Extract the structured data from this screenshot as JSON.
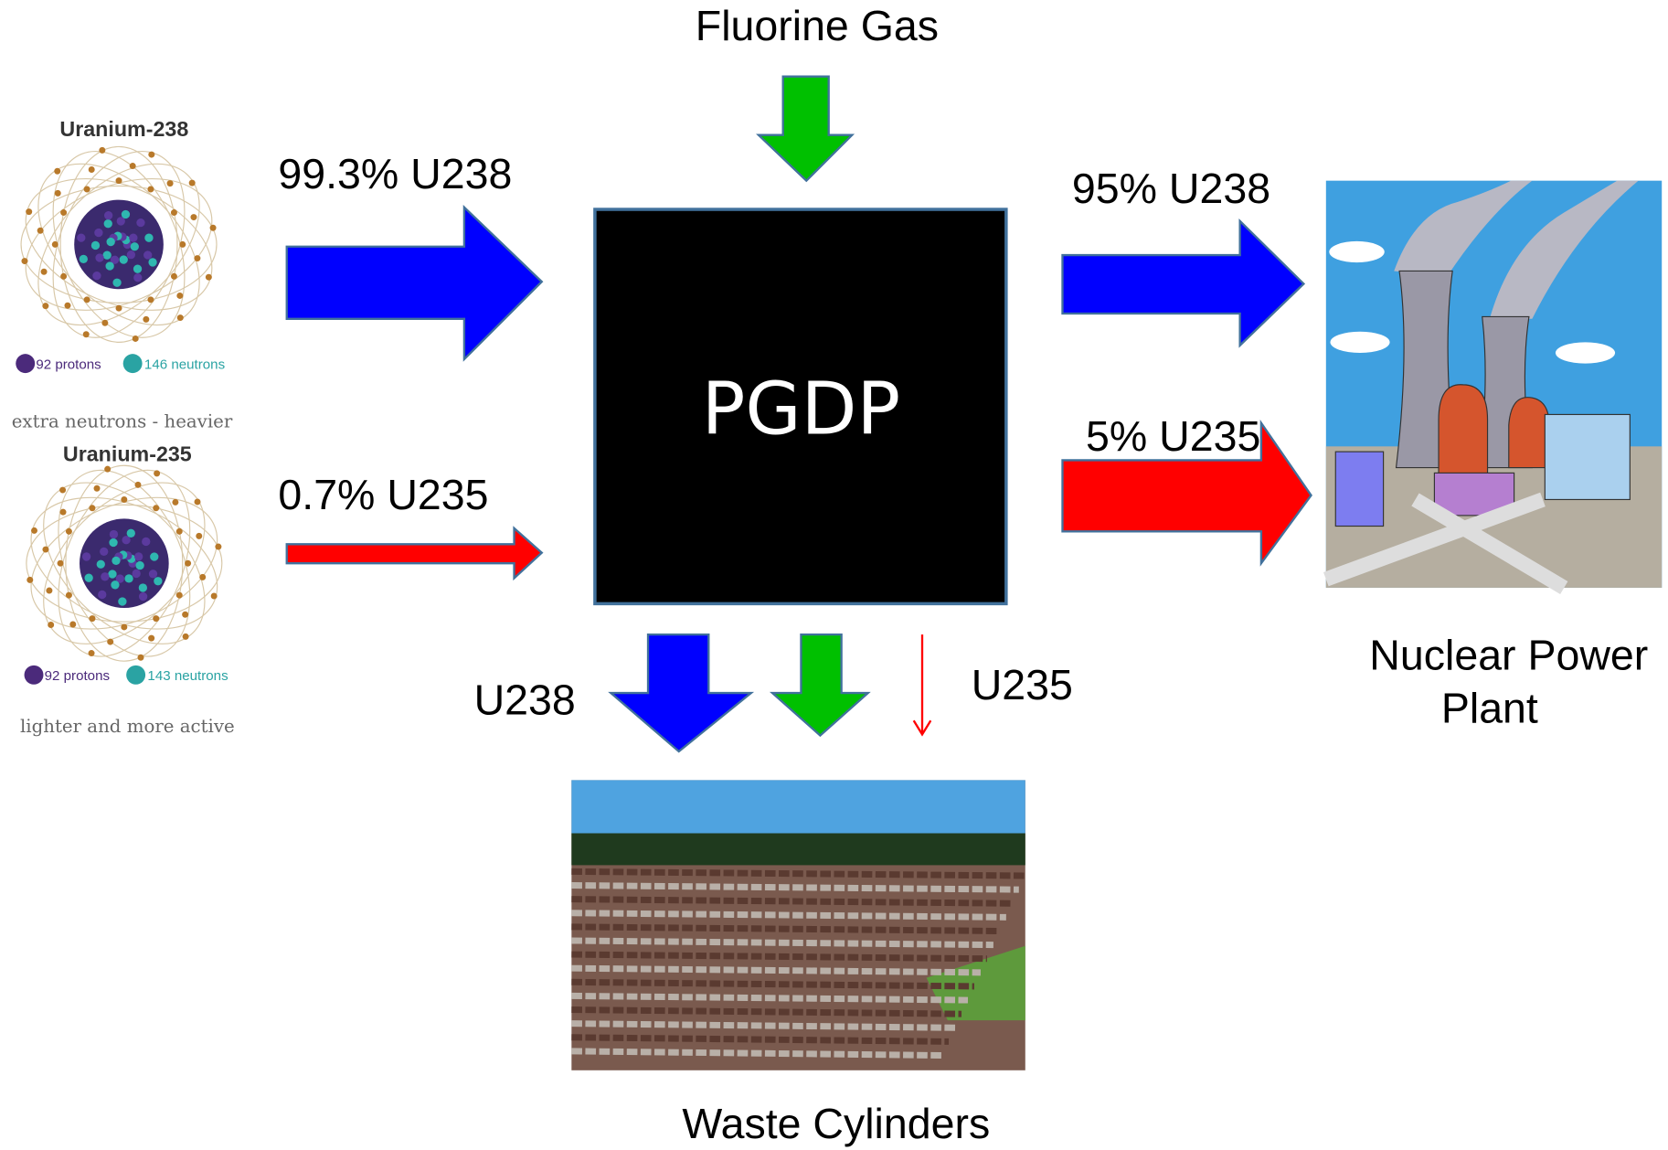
{
  "fluorine": "Fluorine Gas",
  "inputs": {
    "u238": "99.3% U238",
    "u235": "0.7% U235"
  },
  "process": "PGDP",
  "outputs": {
    "u238": "95% U238",
    "u235": "5% U235"
  },
  "plant": {
    "label": [
      "Nuclear Power",
      "Plant"
    ]
  },
  "waste": {
    "u238": "U238",
    "u235": "U235",
    "label": "Waste Cylinders"
  },
  "atoms": [
    {
      "title": "Uranium-238",
      "protons": "92 protons",
      "neutrons": "146 neutrons",
      "note": "extra neutrons - heavier"
    },
    {
      "title": "Uranium-235",
      "protons": "92 protons",
      "neutrons": "143 neutrons",
      "note": "lighter and more active"
    }
  ]
}
